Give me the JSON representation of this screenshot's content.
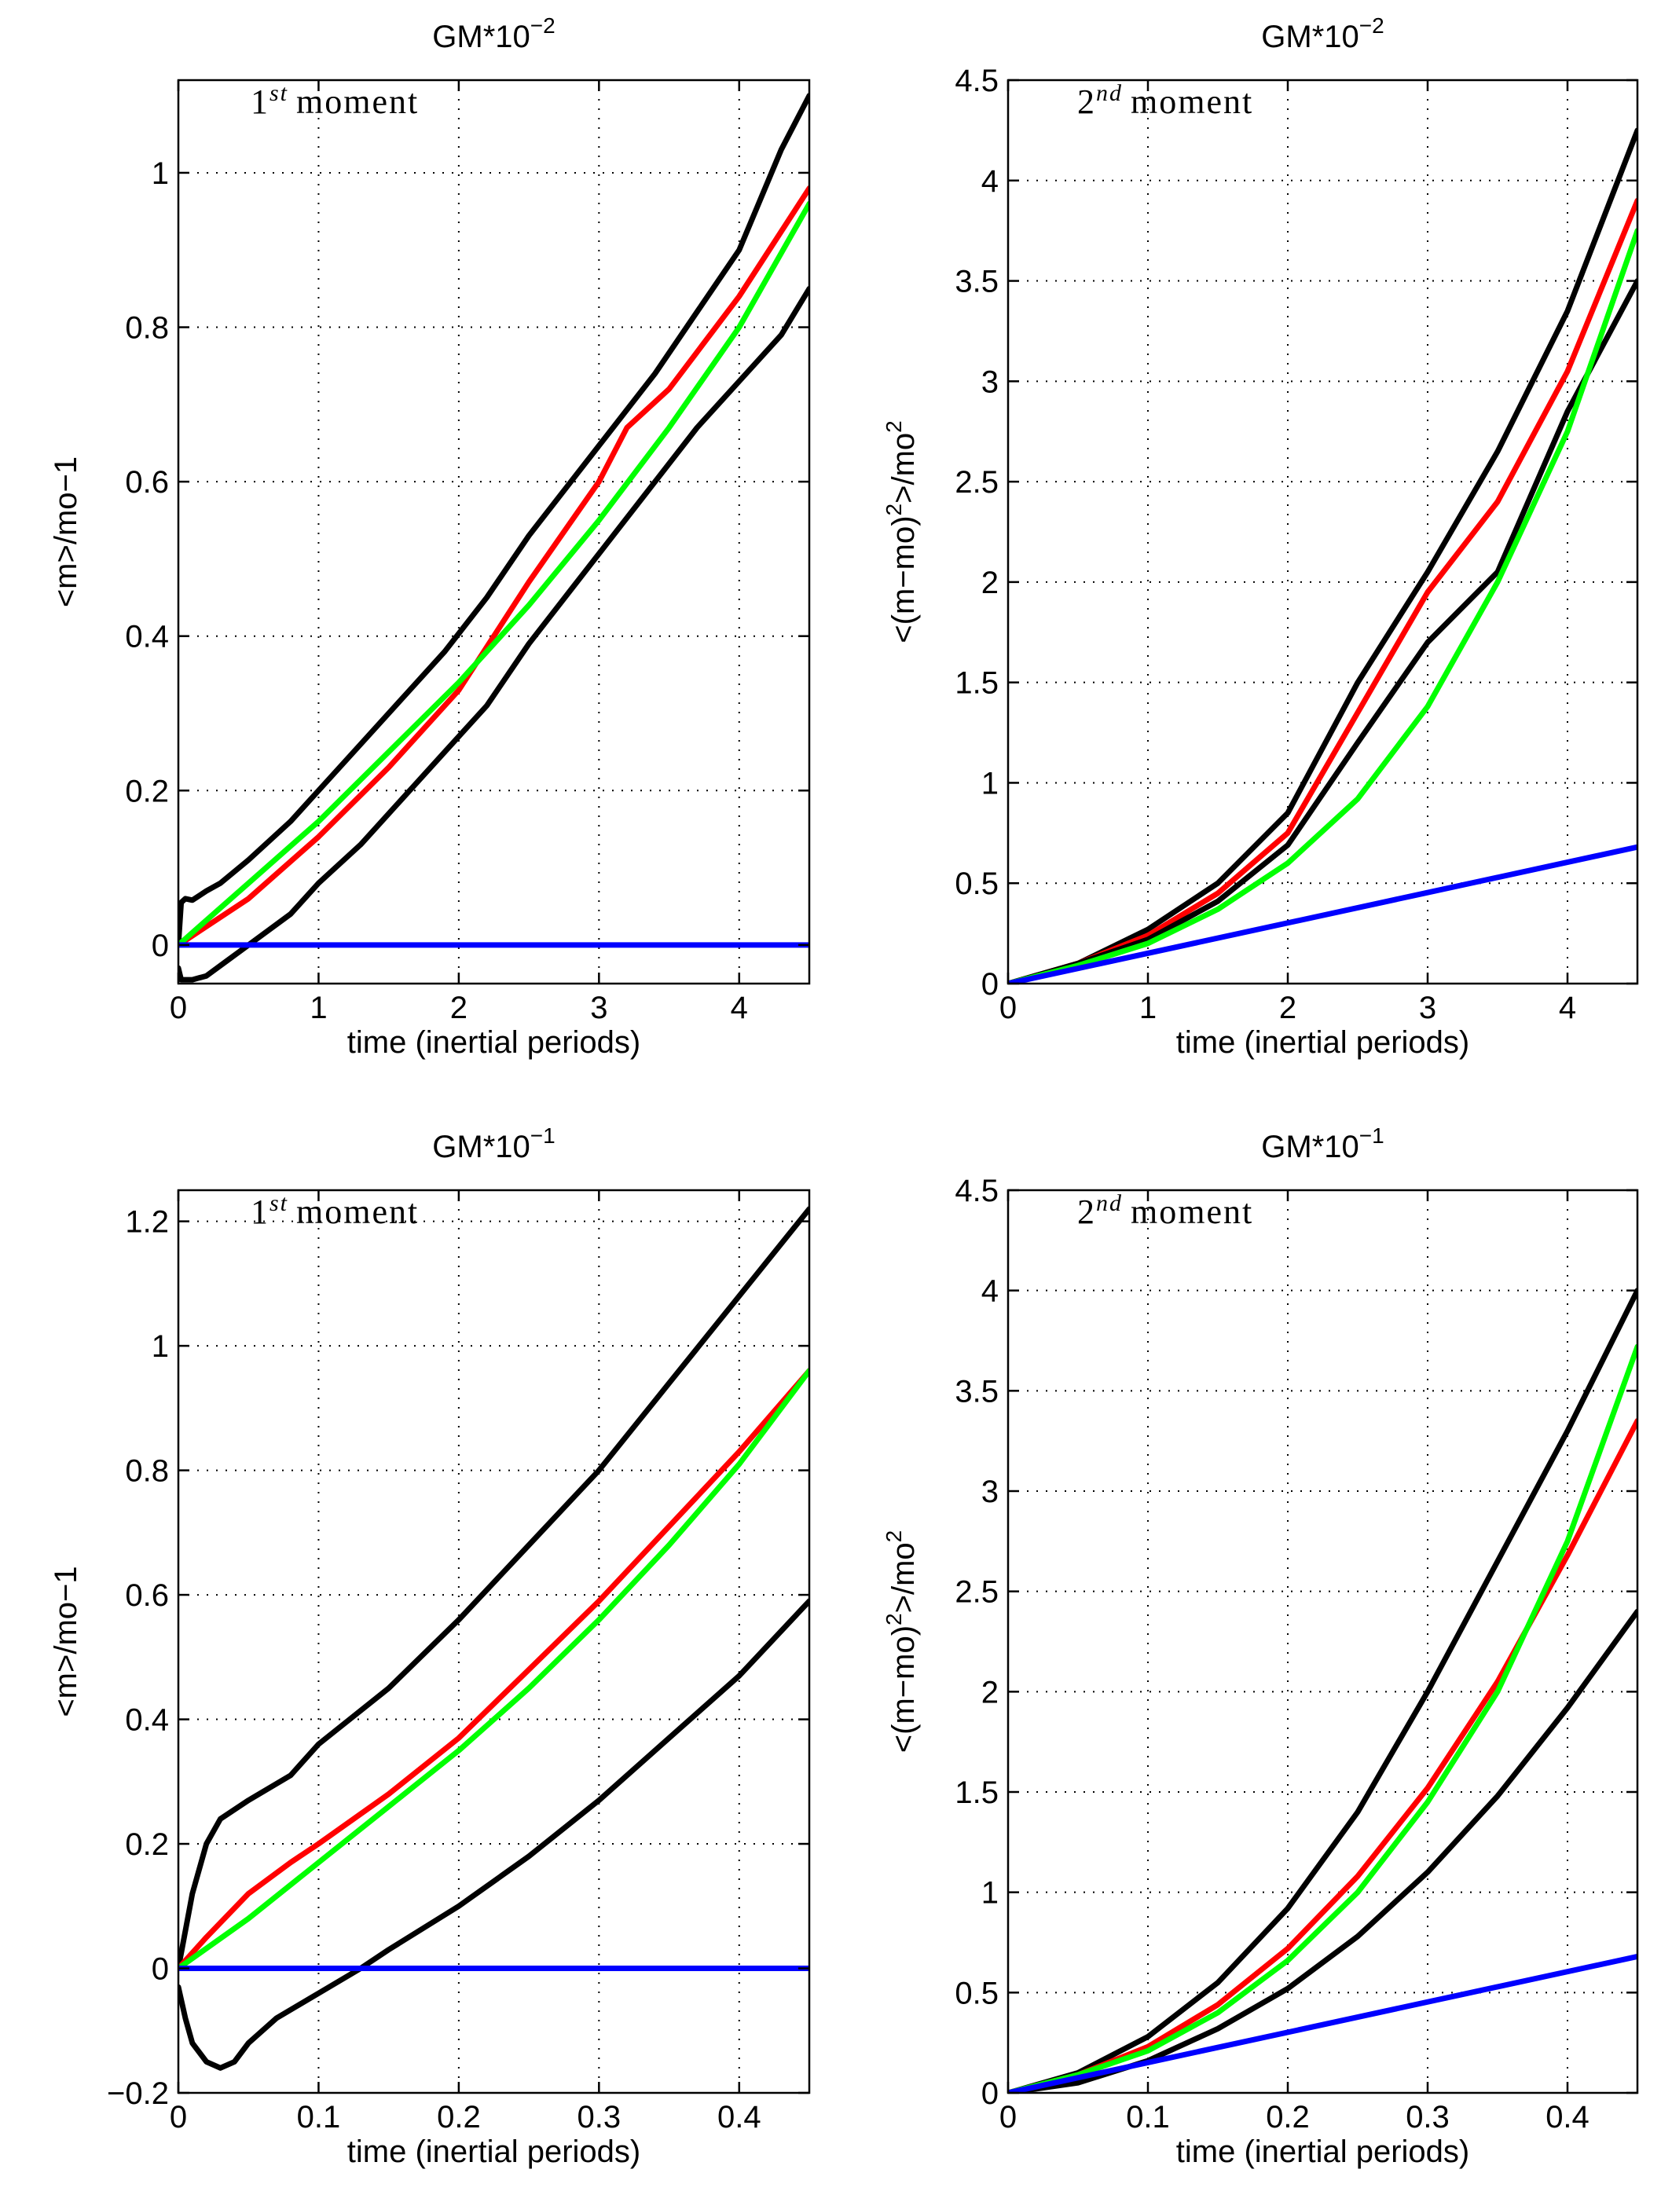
{
  "chart_data": [
    {
      "type": "line",
      "title_base": "GM*10",
      "title_exponent": "−2",
      "annotation_base": "1",
      "annotation_sup": "st",
      "annotation_word": "moment",
      "xlabel": "time (inertial periods)",
      "ylabel": "<m>/mo−1",
      "xlim": [
        0,
        4.5
      ],
      "ylim": [
        -0.05,
        1.12
      ],
      "xticks": [
        0,
        1,
        2,
        3,
        4
      ],
      "xtick_labels": [
        "0",
        "1",
        "2",
        "3",
        "4"
      ],
      "yticks": [
        0,
        0.2,
        0.4,
        0.6,
        0.8,
        1
      ],
      "ytick_labels": [
        "0",
        "0.2",
        "0.4",
        "0.6",
        "0.8",
        "1"
      ],
      "grid": true,
      "series": [
        {
          "color": "#000000",
          "x": [
            0,
            0.02,
            0.05,
            0.1,
            0.2,
            0.3,
            0.5,
            0.8,
            1.0,
            1.3,
            1.6,
            1.9,
            2.2,
            2.5,
            2.8,
            3.1,
            3.4,
            3.7,
            4.0,
            4.3,
            4.5
          ],
          "y": [
            0.0,
            0.055,
            0.06,
            0.058,
            0.07,
            0.08,
            0.11,
            0.16,
            0.2,
            0.26,
            0.32,
            0.38,
            0.45,
            0.53,
            0.6,
            0.67,
            0.74,
            0.82,
            0.9,
            1.03,
            1.1
          ]
        },
        {
          "color": "#ff0000",
          "x": [
            0,
            0.5,
            1.0,
            1.5,
            2.0,
            2.5,
            3.0,
            3.2,
            3.5,
            4.0,
            4.5
          ],
          "y": [
            0.0,
            0.06,
            0.14,
            0.23,
            0.33,
            0.47,
            0.6,
            0.67,
            0.72,
            0.84,
            0.98
          ]
        },
        {
          "color": "#00ff00",
          "x": [
            0,
            0.5,
            1.0,
            1.5,
            2.0,
            2.5,
            3.0,
            3.5,
            4.0,
            4.5
          ],
          "y": [
            0.0,
            0.08,
            0.16,
            0.25,
            0.34,
            0.44,
            0.55,
            0.67,
            0.8,
            0.96
          ]
        },
        {
          "color": "#000000",
          "x": [
            0,
            0.02,
            0.1,
            0.2,
            0.35,
            0.5,
            0.8,
            1.0,
            1.3,
            1.6,
            1.9,
            2.2,
            2.5,
            2.8,
            3.1,
            3.4,
            3.7,
            4.0,
            4.3,
            4.5
          ],
          "y": [
            -0.03,
            -0.045,
            -0.045,
            -0.04,
            -0.02,
            0.0,
            0.04,
            0.08,
            0.13,
            0.19,
            0.25,
            0.31,
            0.39,
            0.46,
            0.53,
            0.6,
            0.67,
            0.73,
            0.79,
            0.85
          ]
        },
        {
          "color": "#0000ff",
          "x": [
            0,
            4.5
          ],
          "y": [
            0.0,
            0.0
          ]
        }
      ]
    },
    {
      "type": "line",
      "title_base": "GM*10",
      "title_exponent": "−2",
      "annotation_base": "2",
      "annotation_sup": "nd",
      "annotation_word": "moment",
      "xlabel": "time (inertial periods)",
      "ylabel_pre": "<(m−mo)",
      "ylabel_sup1": "2",
      "ylabel_mid": ">/mo",
      "ylabel_sup2": "2",
      "xlim": [
        0,
        4.5
      ],
      "ylim": [
        0,
        4.5
      ],
      "xticks": [
        0,
        1,
        2,
        3,
        4
      ],
      "xtick_labels": [
        "0",
        "1",
        "2",
        "3",
        "4"
      ],
      "yticks": [
        0,
        0.5,
        1,
        1.5,
        2,
        2.5,
        3,
        3.5,
        4,
        4.5
      ],
      "ytick_labels": [
        "0",
        "0.5",
        "1",
        "1.5",
        "2",
        "2.5",
        "3",
        "3.5",
        "4",
        "4.5"
      ],
      "grid": true,
      "series": [
        {
          "color": "#000000",
          "x": [
            0,
            0.5,
            1.0,
            1.5,
            2.0,
            2.5,
            3.0,
            3.5,
            4.0,
            4.5
          ],
          "y": [
            0.0,
            0.1,
            0.27,
            0.5,
            0.85,
            1.5,
            2.05,
            2.65,
            3.35,
            4.25
          ]
        },
        {
          "color": "#ff0000",
          "x": [
            0,
            0.5,
            1.0,
            1.5,
            2.0,
            2.5,
            3.0,
            3.5,
            4.0,
            4.5
          ],
          "y": [
            0.0,
            0.1,
            0.24,
            0.45,
            0.75,
            1.35,
            1.95,
            2.4,
            3.05,
            3.9
          ]
        },
        {
          "color": "#000000",
          "x": [
            0,
            0.5,
            1.0,
            1.5,
            2.0,
            2.5,
            3.0,
            3.5,
            4.0,
            4.5
          ],
          "y": [
            0.0,
            0.1,
            0.22,
            0.41,
            0.69,
            1.2,
            1.7,
            2.05,
            2.85,
            3.5
          ]
        },
        {
          "color": "#00ff00",
          "x": [
            0,
            0.5,
            1.0,
            1.5,
            2.0,
            2.5,
            3.0,
            3.5,
            4.0,
            4.5
          ],
          "y": [
            0.0,
            0.09,
            0.2,
            0.37,
            0.6,
            0.92,
            1.38,
            2.0,
            2.75,
            3.75
          ]
        },
        {
          "color": "#0000ff",
          "x": [
            0,
            4.5
          ],
          "y": [
            0.0,
            0.68
          ]
        }
      ]
    },
    {
      "type": "line",
      "title_base": "GM*10",
      "title_exponent": "−1",
      "annotation_base": "1",
      "annotation_sup": "st",
      "annotation_word": "moment",
      "xlabel": "time (inertial periods)",
      "ylabel": "<m>/mo−1",
      "xlim": [
        0,
        0.45
      ],
      "ylim": [
        -0.2,
        1.25
      ],
      "xticks": [
        0,
        0.1,
        0.2,
        0.3,
        0.4
      ],
      "xtick_labels": [
        "0",
        "0.1",
        "0.2",
        "0.3",
        "0.4"
      ],
      "yticks": [
        -0.2,
        0,
        0.2,
        0.4,
        0.6,
        0.8,
        1,
        1.2
      ],
      "ytick_labels": [
        "−0.2",
        "0",
        "0.2",
        "0.4",
        "0.6",
        "0.8",
        "1",
        "1.2"
      ],
      "grid": true,
      "series": [
        {
          "color": "#000000",
          "x": [
            0,
            0.01,
            0.02,
            0.03,
            0.05,
            0.08,
            0.1,
            0.15,
            0.2,
            0.25,
            0.3,
            0.35,
            0.4,
            0.45
          ],
          "y": [
            0.0,
            0.12,
            0.2,
            0.24,
            0.27,
            0.31,
            0.36,
            0.45,
            0.56,
            0.68,
            0.8,
            0.94,
            1.08,
            1.22
          ]
        },
        {
          "color": "#ff0000",
          "x": [
            0,
            0.02,
            0.05,
            0.08,
            0.1,
            0.15,
            0.2,
            0.25,
            0.3,
            0.35,
            0.4,
            0.45
          ],
          "y": [
            0.0,
            0.05,
            0.12,
            0.17,
            0.2,
            0.28,
            0.37,
            0.48,
            0.59,
            0.71,
            0.83,
            0.96
          ]
        },
        {
          "color": "#00ff00",
          "x": [
            0,
            0.05,
            0.1,
            0.15,
            0.2,
            0.25,
            0.3,
            0.35,
            0.4,
            0.45
          ],
          "y": [
            0.0,
            0.08,
            0.17,
            0.26,
            0.35,
            0.45,
            0.56,
            0.68,
            0.81,
            0.96
          ]
        },
        {
          "color": "#000000",
          "x": [
            0,
            0.005,
            0.01,
            0.02,
            0.03,
            0.04,
            0.05,
            0.07,
            0.1,
            0.13,
            0.15,
            0.2,
            0.25,
            0.3,
            0.35,
            0.4,
            0.45
          ],
          "y": [
            -0.03,
            -0.08,
            -0.12,
            -0.15,
            -0.16,
            -0.15,
            -0.12,
            -0.08,
            -0.04,
            0.0,
            0.03,
            0.1,
            0.18,
            0.27,
            0.37,
            0.47,
            0.59
          ]
        },
        {
          "color": "#0000ff",
          "x": [
            0,
            0.45
          ],
          "y": [
            0.0,
            0.0
          ]
        }
      ]
    },
    {
      "type": "line",
      "title_base": "GM*10",
      "title_exponent": "−1",
      "annotation_base": "2",
      "annotation_sup": "nd",
      "annotation_word": "moment",
      "xlabel": "time (inertial periods)",
      "ylabel_pre": "<(m−mo)",
      "ylabel_sup1": "2",
      "ylabel_mid": ">/mo",
      "ylabel_sup2": "2",
      "xlim": [
        0,
        0.45
      ],
      "ylim": [
        0,
        4.5
      ],
      "xticks": [
        0,
        0.1,
        0.2,
        0.3,
        0.4
      ],
      "xtick_labels": [
        "0",
        "0.1",
        "0.2",
        "0.3",
        "0.4"
      ],
      "yticks": [
        0,
        0.5,
        1,
        1.5,
        2,
        2.5,
        3,
        3.5,
        4,
        4.5
      ],
      "ytick_labels": [
        "0",
        "0.5",
        "1",
        "1.5",
        "2",
        "2.5",
        "3",
        "3.5",
        "4",
        "4.5"
      ],
      "grid": true,
      "series": [
        {
          "color": "#000000",
          "x": [
            0,
            0.05,
            0.1,
            0.15,
            0.2,
            0.25,
            0.3,
            0.35,
            0.4,
            0.45
          ],
          "y": [
            0.0,
            0.1,
            0.28,
            0.55,
            0.92,
            1.4,
            2.0,
            2.65,
            3.3,
            4.0
          ]
        },
        {
          "color": "#ff0000",
          "x": [
            0,
            0.05,
            0.1,
            0.15,
            0.2,
            0.25,
            0.3,
            0.35,
            0.4,
            0.45
          ],
          "y": [
            0.0,
            0.09,
            0.23,
            0.44,
            0.72,
            1.08,
            1.52,
            2.05,
            2.68,
            3.35
          ]
        },
        {
          "color": "#00ff00",
          "x": [
            0,
            0.05,
            0.1,
            0.15,
            0.2,
            0.25,
            0.3,
            0.35,
            0.4,
            0.45
          ],
          "y": [
            0.0,
            0.09,
            0.21,
            0.4,
            0.66,
            1.0,
            1.45,
            2.0,
            2.75,
            3.72
          ]
        },
        {
          "color": "#000000",
          "x": [
            0,
            0.05,
            0.1,
            0.15,
            0.2,
            0.25,
            0.3,
            0.35,
            0.4,
            0.45
          ],
          "y": [
            0.0,
            0.05,
            0.16,
            0.32,
            0.52,
            0.78,
            1.1,
            1.48,
            1.92,
            2.4
          ]
        },
        {
          "color": "#0000ff",
          "x": [
            0,
            0.45
          ],
          "y": [
            0.0,
            0.68
          ]
        }
      ]
    }
  ]
}
